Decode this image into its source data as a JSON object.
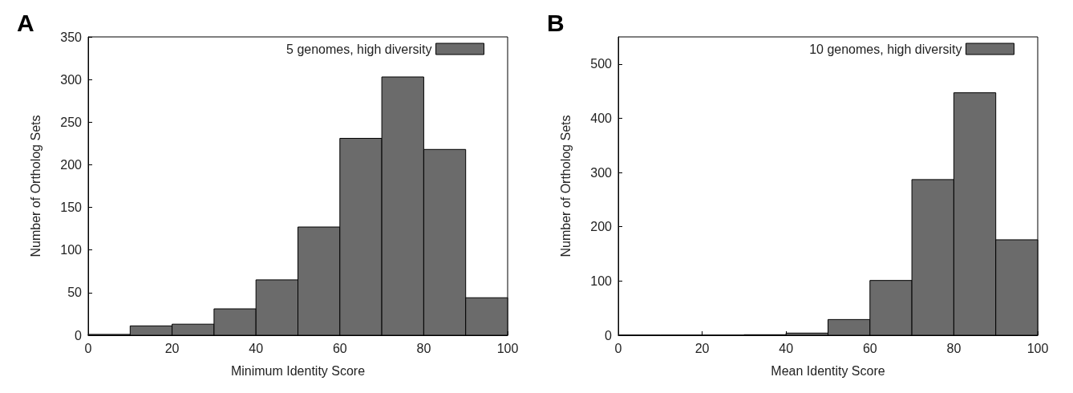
{
  "chart_data": [
    {
      "type": "histogram",
      "title": "A",
      "xlabel": "Minimum Identity Score",
      "ylabel": "Number of Ortholog Sets",
      "bins": [
        0,
        10,
        20,
        30,
        40,
        50,
        60,
        70,
        80,
        90,
        100
      ],
      "series": [
        {
          "name": "5 genomes, high diversity",
          "color": "#6b6b6b",
          "values": [
            1,
            11,
            13,
            31,
            65,
            127,
            231,
            303,
            218,
            44
          ]
        }
      ],
      "xlim": [
        0,
        100
      ],
      "xticks": [
        0,
        20,
        40,
        60,
        80,
        100
      ],
      "ylim": [
        0,
        350
      ],
      "yticks": [
        0,
        50,
        100,
        150,
        200,
        250,
        300,
        350
      ],
      "legend": "top right",
      "grid": false
    },
    {
      "type": "histogram",
      "title": "B",
      "xlabel": "Mean Identity Score",
      "ylabel": "Number of Ortholog Sets",
      "bins": [
        0,
        10,
        20,
        30,
        40,
        50,
        60,
        70,
        80,
        90,
        100
      ],
      "series": [
        {
          "name": "10 genomes, high diversity",
          "color": "#6b6b6b",
          "values": [
            0,
            0,
            0,
            1,
            4,
            29,
            101,
            287,
            447,
            176
          ]
        }
      ],
      "xlim": [
        0,
        100
      ],
      "xticks": [
        0,
        20,
        40,
        60,
        80,
        100
      ],
      "ylim": [
        0,
        550
      ],
      "yticks": [
        0,
        100,
        200,
        300,
        400,
        500
      ],
      "legend": "top right",
      "grid": false
    }
  ]
}
